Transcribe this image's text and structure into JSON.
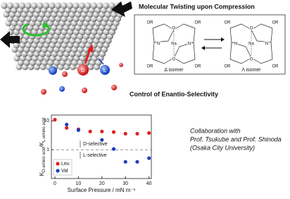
{
  "header": {
    "title": "Molecular Twisting upon Compression",
    "subtitle": "Control of Enantio-Selectivity"
  },
  "ball_labels": [
    "D",
    "L"
  ],
  "structures": {
    "atoms_delta": [
      "OR",
      "OR",
      "OR",
      "OR",
      "N",
      "N",
      "O",
      "O",
      "Na"
    ],
    "atoms_lambda": [
      "OR",
      "OR",
      "OR",
      "OR",
      "N",
      "N",
      "O",
      "O",
      "Na"
    ],
    "delta_label": "Δ isomer",
    "lambda_label": "Λ isomer"
  },
  "collaboration": [
    "Collaboration with",
    "Prof. Tsukube and Prof. Shinoda",
    "(Osaka City University)"
  ],
  "chart_data": {
    "type": "scatter",
    "x_label": "Surface Pressure / mN m⁻¹",
    "y_label": [
      "K",
      "D-amino acid",
      "/K",
      "L-amino acid"
    ],
    "annotations": [
      "D-selective",
      "L-selective"
    ],
    "reference_line": 1,
    "xlim": [
      -1.5,
      41
    ],
    "xticks": [
      0,
      10,
      20,
      30,
      40
    ],
    "ylim": [
      0.1,
      16
    ],
    "yticks": [
      1,
      10
    ],
    "ylog": true,
    "series": [
      {
        "name": "Leu",
        "color": "#e02020",
        "x": [
          0,
          5,
          10,
          15,
          20,
          25,
          30,
          35,
          40
        ],
        "values": [
          11,
          5.7,
          5.1,
          4.3,
          4.3,
          4.1,
          3.6,
          3.6,
          3.8
        ]
      },
      {
        "name": "Val",
        "color": "#1f3fbf",
        "x": [
          5,
          10,
          20,
          25,
          30,
          35,
          40
        ],
        "values": [
          7.5,
          4.8,
          2.2,
          1.06,
          0.38,
          0.38,
          0.51
        ]
      }
    ]
  }
}
